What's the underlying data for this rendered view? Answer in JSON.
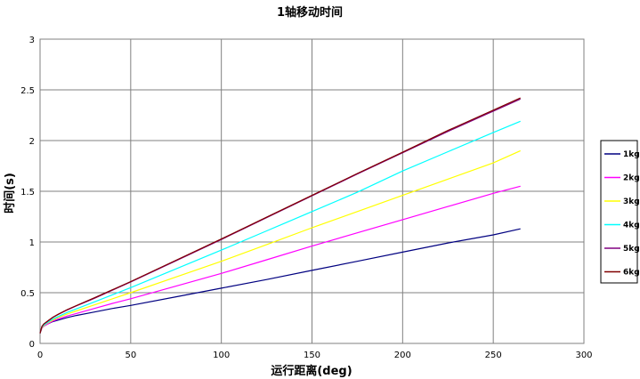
{
  "chart_data": {
    "type": "line",
    "title": "1轴移动时间",
    "xlabel": "运行距离(deg)",
    "ylabel": "时间(s)",
    "xlim": [
      0,
      300
    ],
    "ylim": [
      0,
      3
    ],
    "x_ticks": [
      "0",
      "50",
      "100",
      "150",
      "200",
      "250",
      "300"
    ],
    "y_ticks": [
      "0",
      "0.5",
      "1",
      "1.5",
      "2",
      "2.5",
      "3"
    ],
    "grid": true,
    "legend_position": "right",
    "x": [
      0,
      1,
      2,
      4,
      7,
      10,
      15,
      20,
      30,
      40,
      50,
      75,
      100,
      125,
      150,
      175,
      200,
      225,
      250,
      265
    ],
    "series": [
      {
        "name": "1kg",
        "color": "#000080",
        "values": [
          0.1,
          0.15,
          0.17,
          0.19,
          0.215,
          0.23,
          0.255,
          0.275,
          0.31,
          0.345,
          0.375,
          0.46,
          0.545,
          0.63,
          0.72,
          0.81,
          0.9,
          0.99,
          1.07,
          1.13
        ]
      },
      {
        "name": "2kg",
        "color": "#ff00ff",
        "values": [
          0.1,
          0.15,
          0.17,
          0.19,
          0.22,
          0.24,
          0.27,
          0.295,
          0.345,
          0.395,
          0.44,
          0.565,
          0.69,
          0.825,
          0.96,
          1.09,
          1.22,
          1.35,
          1.48,
          1.55
        ]
      },
      {
        "name": "3kg",
        "color": "#ffff00",
        "values": [
          0.1,
          0.155,
          0.175,
          0.2,
          0.23,
          0.255,
          0.29,
          0.32,
          0.38,
          0.44,
          0.5,
          0.655,
          0.81,
          0.975,
          1.14,
          1.3,
          1.46,
          1.62,
          1.78,
          1.9
        ]
      },
      {
        "name": "4kg",
        "color": "#00ffff",
        "values": [
          0.1,
          0.16,
          0.18,
          0.205,
          0.24,
          0.265,
          0.305,
          0.34,
          0.41,
          0.48,
          0.55,
          0.735,
          0.92,
          1.11,
          1.3,
          1.49,
          1.7,
          1.89,
          2.08,
          2.19
        ]
      },
      {
        "name": "5kg",
        "color": "#800080",
        "values": [
          0.1,
          0.165,
          0.19,
          0.215,
          0.255,
          0.285,
          0.33,
          0.37,
          0.445,
          0.525,
          0.605,
          0.815,
          1.025,
          1.24,
          1.455,
          1.67,
          1.88,
          2.09,
          2.29,
          2.41
        ]
      },
      {
        "name": "6kg",
        "color": "#800000",
        "values": [
          0.1,
          0.165,
          0.19,
          0.218,
          0.258,
          0.288,
          0.333,
          0.373,
          0.45,
          0.53,
          0.61,
          0.82,
          1.03,
          1.245,
          1.46,
          1.675,
          1.885,
          2.1,
          2.3,
          2.42
        ]
      }
    ]
  }
}
